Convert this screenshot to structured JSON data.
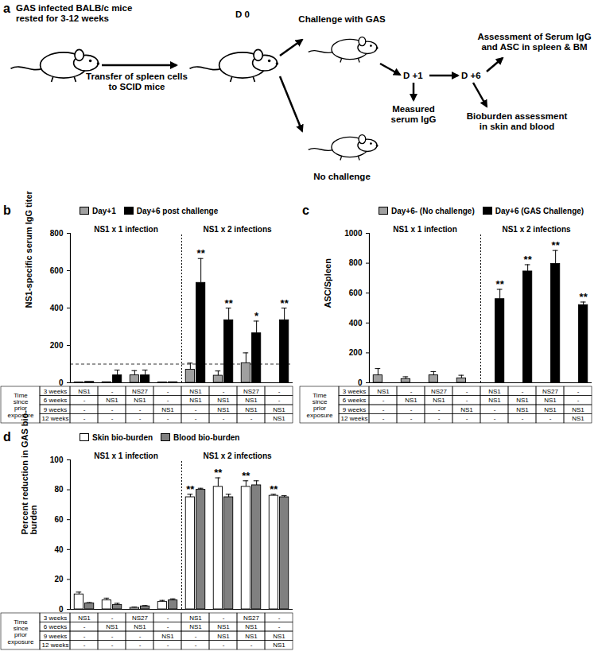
{
  "diagram": {
    "panel_label": "a",
    "labels": [
      [
        "GAS infected BALB/c mice",
        "rested for 3-12 weeks"
      ],
      [
        "Transfer of spleen cells",
        "to SCID mice"
      ],
      [
        "D 0"
      ],
      [
        "Challenge with GAS"
      ],
      [
        "No challenge"
      ],
      [
        "D +1"
      ],
      [
        "Measured",
        "serum IgG"
      ],
      [
        "D +6"
      ],
      [
        "Assessment of Serum IgG",
        "and ASC in spleen & BM"
      ],
      [
        "Bioburden assessment",
        "in skin and blood"
      ]
    ]
  },
  "chart_data": [
    {
      "panel_label": "b",
      "type": "bar",
      "ylabel": "NS1-specific serum IgG titer",
      "ylim": [
        0,
        800
      ],
      "yticks": [
        0,
        200,
        400,
        600,
        800
      ],
      "reference_line": 100,
      "legend": "top",
      "sections": [
        {
          "label": "NS1 x 1 infection",
          "size": 4
        },
        {
          "label": "NS1 x 2 infections",
          "size": 4
        }
      ],
      "series": [
        {
          "name": "Day+1",
          "color": "#a0a0a0",
          "values": [
            2,
            3,
            40,
            2,
            70,
            38,
            105,
            0
          ],
          "errors": [
            0,
            0,
            25,
            0,
            35,
            25,
            55,
            0
          ]
        },
        {
          "name": "Day+6 post challenge",
          "color": "#000000",
          "values": [
            5,
            40,
            40,
            3,
            535,
            335,
            265,
            335
          ],
          "errors": [
            0,
            28,
            28,
            0,
            130,
            65,
            65,
            65
          ],
          "annotations": [
            null,
            null,
            null,
            null,
            "**",
            "**",
            "*",
            "**"
          ]
        }
      ],
      "table": {
        "header": "Time since prior exposure",
        "rows": [
          {
            "label": "3 weeks",
            "cells": [
              "NS1",
              "-",
              "NS27",
              "-",
              "NS1",
              "-",
              "NS27",
              "-"
            ]
          },
          {
            "label": "6 weeks",
            "cells": [
              "-",
              "NS1",
              "NS1",
              "-",
              "NS1",
              "NS1",
              "NS1",
              "-"
            ]
          },
          {
            "label": "9 weeks",
            "cells": [
              "-",
              "-",
              "-",
              "NS1",
              "-",
              "NS1",
              "NS1",
              "NS1"
            ]
          },
          {
            "label": "12 weeks",
            "cells": [
              "-",
              "-",
              "-",
              "-",
              "-",
              "-",
              "-",
              "NS1"
            ]
          }
        ]
      }
    },
    {
      "panel_label": "c",
      "type": "bar",
      "ylabel": "ASC/Spleen",
      "ylim": [
        0,
        1000
      ],
      "yticks": [
        0,
        200,
        400,
        600,
        800,
        1000
      ],
      "legend": "top",
      "sections": [
        {
          "label": "NS1 x 1 infection",
          "size": 4
        },
        {
          "label": "NS1 x 2 infections",
          "size": 4
        }
      ],
      "series": [
        {
          "name": "Day+6- (No challenge)",
          "color": "#a0a0a0",
          "values": [
            50,
            25,
            50,
            30,
            null,
            null,
            null,
            null
          ],
          "errors": [
            45,
            15,
            25,
            20,
            null,
            null,
            null,
            null
          ]
        },
        {
          "name": "Day+6 (GAS Challenge)",
          "color": "#000000",
          "values": [
            null,
            null,
            null,
            null,
            560,
            745,
            795,
            520
          ],
          "errors": [
            null,
            null,
            null,
            null,
            65,
            45,
            90,
            20
          ],
          "annotations": [
            null,
            null,
            null,
            null,
            "**",
            "**",
            "**",
            "**"
          ]
        }
      ],
      "table": {
        "header": "Time since prior exposure",
        "rows": [
          {
            "label": "3 weeks",
            "cells": [
              "NS1",
              "-",
              "NS27",
              "-",
              "NS1",
              "-",
              "NS27",
              "-"
            ]
          },
          {
            "label": "6 weeks",
            "cells": [
              "-",
              "NS1",
              "NS1",
              "-",
              "NS1",
              "NS1",
              "NS1",
              "-"
            ]
          },
          {
            "label": "9 weeks",
            "cells": [
              "-",
              "-",
              "-",
              "NS1",
              "-",
              "NS1",
              "NS1",
              "NS1"
            ]
          },
          {
            "label": "12 weeks",
            "cells": [
              "-",
              "-",
              "-",
              "-",
              "-",
              "-",
              "-",
              "NS1"
            ]
          }
        ]
      }
    },
    {
      "panel_label": "d",
      "type": "bar",
      "ylabel": "Percent reduction in GAS bio-burden",
      "ylim": [
        0,
        100
      ],
      "yticks": [
        0,
        20,
        40,
        60,
        80,
        100
      ],
      "legend": "top",
      "sections": [
        {
          "label": "NS1 x 1 infection",
          "size": 4
        },
        {
          "label": "NS1 x 2 infections",
          "size": 4
        }
      ],
      "series": [
        {
          "name": "Skin bio-burden",
          "color": "#ffffff",
          "values": [
            10,
            6,
            1,
            5,
            75,
            82,
            82,
            76
          ],
          "errors": [
            1.5,
            1.5,
            0.5,
            1,
            2,
            6,
            4,
            1
          ],
          "annotations": [
            null,
            null,
            null,
            null,
            "**",
            "**",
            "**",
            "**"
          ]
        },
        {
          "name": "Blood bio-burden",
          "color": "#808080",
          "values": [
            4,
            3,
            2,
            6,
            80,
            75,
            83,
            75
          ],
          "errors": [
            0.5,
            1,
            0.5,
            1,
            1,
            2,
            3,
            1
          ]
        }
      ],
      "table": {
        "header": "Time since prior exposure",
        "rows": [
          {
            "label": "3 weeks",
            "cells": [
              "NS1",
              "-",
              "NS27",
              "-",
              "NS1",
              "-",
              "NS27",
              "-"
            ]
          },
          {
            "label": "6 weeks",
            "cells": [
              "-",
              "NS1",
              "NS1",
              "-",
              "NS1",
              "NS1",
              "NS1",
              "-"
            ]
          },
          {
            "label": "9 weeks",
            "cells": [
              "-",
              "-",
              "-",
              "NS1",
              "-",
              "NS1",
              "NS1",
              "NS1"
            ]
          },
          {
            "label": "12 weeks",
            "cells": [
              "-",
              "-",
              "-",
              "-",
              "-",
              "-",
              "-",
              "NS1"
            ]
          }
        ]
      }
    }
  ]
}
